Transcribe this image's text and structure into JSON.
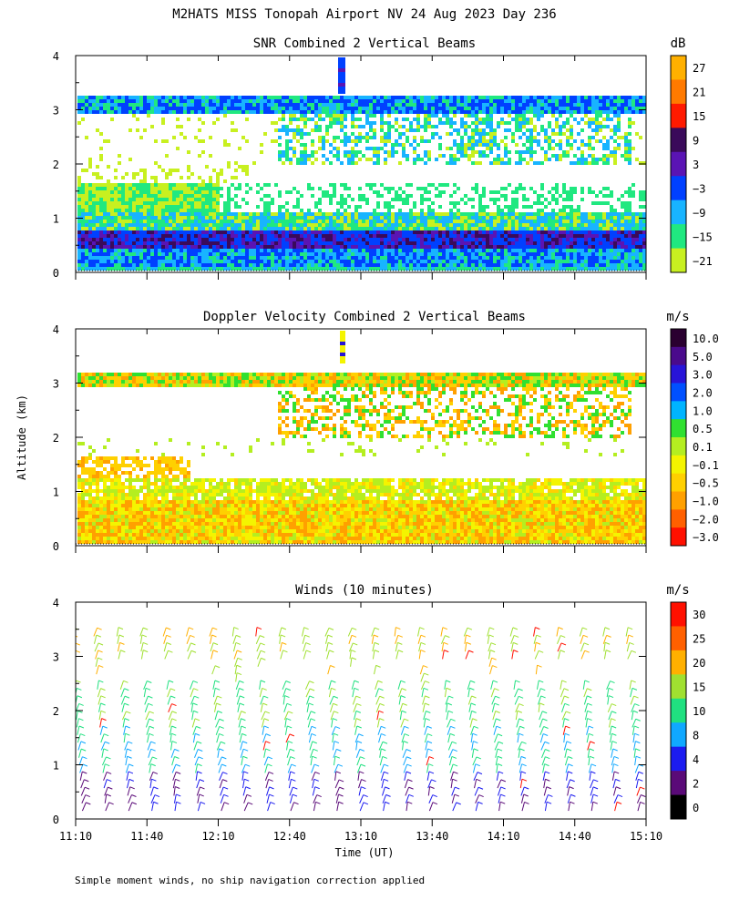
{
  "figure": {
    "title": "M2HATS MISS Tonopah Airport NV  24 Aug 2023 Day 236",
    "ylabel": "Altitude (km)",
    "xlabel": "Time (UT)",
    "footnote": "Simple moment winds, no ship navigation correction applied"
  },
  "chart_data": [
    {
      "type": "heatmap",
      "title": "SNR Combined 2 Vertical Beams",
      "units": "dB",
      "yticks": [
        "0",
        "1",
        "2",
        "3",
        "4"
      ],
      "ylim": [
        0,
        4
      ],
      "colorbar": {
        "labels": [
          "27",
          "21",
          "15",
          "9",
          "3",
          "−3",
          "−9",
          "−15",
          "−21"
        ],
        "colors": [
          "#ffb000",
          "#ff7a00",
          "#ff1a00",
          "#3a0a5a",
          "#5a14b4",
          "#0040ff",
          "#18b4ff",
          "#20e880",
          "#c8f020"
        ]
      }
    },
    {
      "type": "heatmap",
      "title": "Doppler Velocity Combined 2 Vertical Beams",
      "units": "m/s",
      "yticks": [
        "0",
        "1",
        "2",
        "3",
        "4"
      ],
      "ylim": [
        0,
        4
      ],
      "colorbar": {
        "labels": [
          "10.0",
          "5.0",
          "3.0",
          "2.0",
          "1.0",
          "0.5",
          "0.1",
          "−0.1",
          "−0.5",
          "−1.0",
          "−2.0",
          "−3.0"
        ],
        "colors": [
          "#2a0030",
          "#4a0a8c",
          "#2814d8",
          "#0050ff",
          "#00b4ff",
          "#30e030",
          "#b4ee20",
          "#f4f400",
          "#ffd000",
          "#ffa000",
          "#ff6000",
          "#ff1000"
        ]
      }
    },
    {
      "type": "scatter",
      "title": "Winds (10 minutes)",
      "units": "m/s",
      "yticks": [
        "0",
        "1",
        "2",
        "3",
        "4"
      ],
      "ylim": [
        0,
        4
      ],
      "xticks": [
        "11:10",
        "11:40",
        "12:10",
        "12:40",
        "13:10",
        "13:40",
        "14:10",
        "14:40",
        "15:10"
      ],
      "colorbar": {
        "labels": [
          "30",
          "25",
          "20",
          "15",
          "10",
          "8",
          "4",
          "2",
          "0"
        ],
        "colors": [
          "#ff1000",
          "#ff6000",
          "#ffb000",
          "#a0e030",
          "#20e080",
          "#10a8ff",
          "#1c1cf0",
          "#5a0a78",
          "#000000"
        ]
      }
    }
  ]
}
